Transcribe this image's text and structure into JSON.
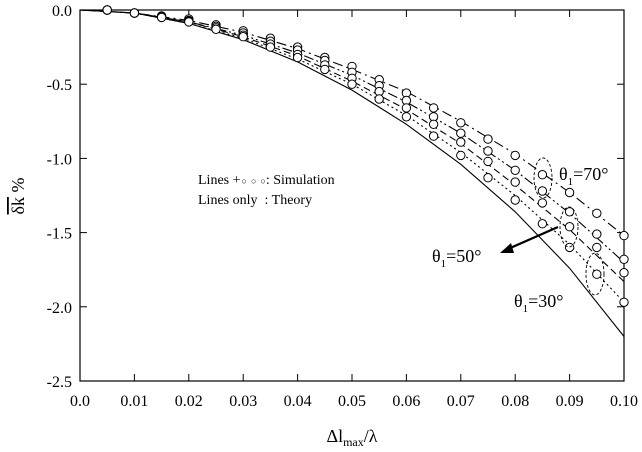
{
  "chart_data": {
    "type": "line",
    "title": "",
    "xlabel": {
      "main": "Δl",
      "sub": "max",
      "tail": "/λ"
    },
    "ylabel": {
      "main": "δk",
      "tail": " %"
    },
    "xlim": [
      0.0,
      0.1
    ],
    "ylim": [
      -2.5,
      0.0
    ],
    "grid": false,
    "x_ticks": [
      "0.0",
      "0.01",
      "0.02",
      "0.03",
      "0.04",
      "0.05",
      "0.06",
      "0.07",
      "0.08",
      "0.09",
      "0.10"
    ],
    "y_ticks": [
      "0.0",
      "-0.5",
      "-1.0",
      "-1.5",
      "-2.0",
      "-2.5"
    ],
    "x_tick_values": [
      0.0,
      0.01,
      0.02,
      0.03,
      0.04,
      0.05,
      0.06,
      0.07,
      0.08,
      0.09,
      0.1
    ],
    "y_tick_values": [
      0.0,
      -0.5,
      -1.0,
      -1.5,
      -2.0,
      -2.5
    ],
    "legend": {
      "line1_label": "Lines +",
      "line1_text": ": Simulation",
      "line2_label": "Lines only",
      "line2_text": ": Theory",
      "marker_glyphs": [
        "○",
        "○",
        "○"
      ]
    },
    "annotations": [
      {
        "theta": "θ",
        "sub": "1",
        "value": "=70°"
      },
      {
        "theta": "θ",
        "sub": "1",
        "value": "=50°"
      },
      {
        "theta": "θ",
        "sub": "1",
        "value": "=30°"
      }
    ],
    "theory_x": [
      0,
      0.01,
      0.02,
      0.03,
      0.04,
      0.05,
      0.06,
      0.07,
      0.08,
      0.09,
      0.1
    ],
    "theory": [
      {
        "style": "dashdot",
        "values": [
          0,
          -0.02,
          -0.07,
          -0.15,
          -0.26,
          -0.4,
          -0.55,
          -0.75,
          -0.97,
          -1.23,
          -1.52
        ]
      },
      {
        "style": "dashdotdot",
        "values": [
          0,
          -0.02,
          -0.08,
          -0.17,
          -0.29,
          -0.44,
          -0.62,
          -0.83,
          -1.08,
          -1.37,
          -1.7
        ]
      },
      {
        "style": "dashed",
        "values": [
          0,
          -0.02,
          -0.08,
          -0.18,
          -0.31,
          -0.48,
          -0.67,
          -0.9,
          -1.18,
          -1.48,
          -1.83
        ]
      },
      {
        "style": "dotted",
        "values": [
          0,
          -0.02,
          -0.09,
          -0.19,
          -0.33,
          -0.5,
          -0.71,
          -0.96,
          -1.25,
          -1.58,
          -1.97
        ]
      },
      {
        "style": "solid",
        "values": [
          0,
          -0.02,
          -0.09,
          -0.2,
          -0.35,
          -0.54,
          -0.77,
          -1.04,
          -1.36,
          -1.74,
          -2.2
        ]
      }
    ],
    "simulation_x": [
      0.005,
      0.01,
      0.015,
      0.02,
      0.025,
      0.03,
      0.035,
      0.04,
      0.045,
      0.05,
      0.055,
      0.06,
      0.065,
      0.07,
      0.075,
      0.08,
      0.085,
      0.09,
      0.095,
      0.1
    ],
    "simulation": [
      {
        "values": [
          0,
          -0.02,
          -0.04,
          -0.06,
          -0.1,
          -0.14,
          -0.19,
          -0.25,
          -0.32,
          -0.38,
          -0.47,
          -0.56,
          -0.66,
          -0.76,
          -0.87,
          -0.98,
          -1.11,
          -1.23,
          -1.37,
          -1.52
        ]
      },
      {
        "values": [
          0,
          -0.02,
          -0.045,
          -0.07,
          -0.11,
          -0.155,
          -0.21,
          -0.27,
          -0.34,
          -0.42,
          -0.51,
          -0.61,
          -0.72,
          -0.83,
          -0.95,
          -1.08,
          -1.22,
          -1.36,
          -1.51,
          -1.68
        ]
      },
      {
        "values": [
          0,
          -0.02,
          -0.05,
          -0.075,
          -0.12,
          -0.17,
          -0.23,
          -0.3,
          -0.37,
          -0.46,
          -0.55,
          -0.66,
          -0.77,
          -0.89,
          -1.02,
          -1.16,
          -1.3,
          -1.46,
          -1.6,
          -1.77
        ]
      },
      {
        "values": [
          0,
          -0.02,
          -0.05,
          -0.08,
          -0.13,
          -0.18,
          -0.25,
          -0.32,
          -0.4,
          -0.5,
          -0.6,
          -0.72,
          -0.85,
          -0.98,
          -1.13,
          -1.28,
          -1.44,
          -1.6,
          -1.78,
          -1.97
        ]
      }
    ]
  }
}
